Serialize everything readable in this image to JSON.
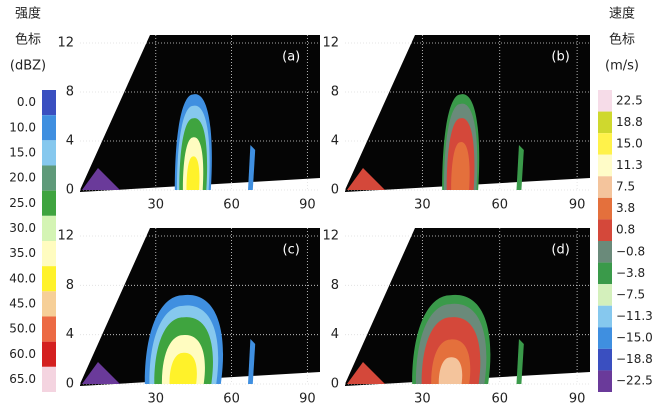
{
  "left_legend": {
    "title_lines": [
      "强度",
      "色标",
      "(dBZ)"
    ],
    "entries": [
      {
        "label": "0.0",
        "color": "#3a4fc0"
      },
      {
        "label": "10.0",
        "color": "#3f8fe0"
      },
      {
        "label": "15.0",
        "color": "#86c8ee"
      },
      {
        "label": "20.0",
        "color": "#5f9a7a"
      },
      {
        "label": "25.0",
        "color": "#3fa43f"
      },
      {
        "label": "30.0",
        "color": "#d4f4b4"
      },
      {
        "label": "35.0",
        "color": "#fffcc0"
      },
      {
        "label": "40.0",
        "color": "#fff22a"
      },
      {
        "label": "45.0",
        "color": "#f6cf98"
      },
      {
        "label": "50.0",
        "color": "#ec6a44"
      },
      {
        "label": "60.0",
        "color": "#d42020"
      },
      {
        "label": "65.0",
        "color": "#f4d4e0"
      }
    ]
  },
  "right_legend": {
    "title_lines": [
      "速度",
      "色标",
      "(m/s)"
    ],
    "entries": [
      {
        "label": "22.5",
        "color": "#f6dce8"
      },
      {
        "label": "18.8",
        "color": "#cfd82e"
      },
      {
        "label": "15.0",
        "color": "#fff24a"
      },
      {
        "label": "11.3",
        "color": "#fffcc8"
      },
      {
        "label": "7.5",
        "color": "#f4c49c"
      },
      {
        "label": "3.8",
        "color": "#e4703c"
      },
      {
        "label": "0.8",
        "color": "#d4483a"
      },
      {
        "label": "−0.8",
        "color": "#6a8a7a"
      },
      {
        "label": "−3.8",
        "color": "#3a9a4a"
      },
      {
        "label": "−7.5",
        "color": "#d4f0bc"
      },
      {
        "label": "−11.3",
        "color": "#86c8ee"
      },
      {
        "label": "−15.0",
        "color": "#3f8fe0"
      },
      {
        "label": "−18.8",
        "color": "#3a4fc0"
      },
      {
        "label": "−22.5",
        "color": "#6a3a9a"
      }
    ]
  },
  "panels": [
    {
      "label": "(a)",
      "yticks": [
        "0",
        "4",
        "8",
        "12"
      ],
      "xticks": [
        "30",
        "60",
        "90"
      ]
    },
    {
      "label": "(b)",
      "yticks": [
        "0",
        "4",
        "8",
        "12"
      ],
      "xticks": [
        "30",
        "60",
        "90"
      ]
    },
    {
      "label": "(c)",
      "yticks": [
        "0",
        "4",
        "8",
        "12"
      ],
      "xticks": [
        "30",
        "60",
        "90"
      ]
    },
    {
      "label": "(d)",
      "yticks": [
        "0",
        "4",
        "8",
        "12"
      ],
      "xticks": [
        "30",
        "60",
        "90"
      ]
    }
  ]
}
